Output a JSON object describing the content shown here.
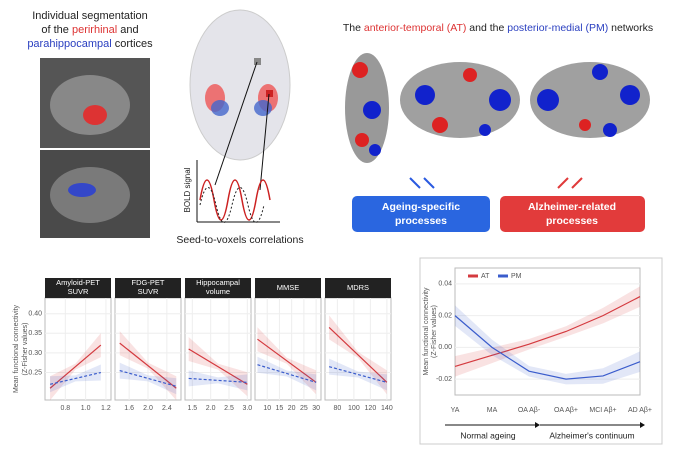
{
  "segmentation": {
    "lines": [
      "Individual segmentation",
      "of the ",
      "perirhinal",
      " and",
      "parahippocampal",
      " cortices"
    ]
  },
  "seed": {
    "caption": "Seed-to-voxels correlations",
    "signal": "BOLD signal"
  },
  "networks": {
    "title": [
      "The ",
      "anterior-temporal (AT)",
      " and the ",
      "posterior-medial (PM)",
      " networks"
    ]
  },
  "boxes": {
    "ageing": [
      "Ageing-specific",
      "processes"
    ],
    "alzheimer": [
      "Alzheimer-related",
      "processes"
    ]
  },
  "chart_data": [
    {
      "type": "line",
      "ylabel": [
        "Mean functional connectivity",
        "(Z-Fisher values)"
      ],
      "ylim": [
        0.18,
        0.44
      ],
      "yticks": [
        0.25,
        {
          "value": 0.3,
          "label": "0.30"
        },
        0.35,
        {
          "value": 0.4,
          "label": "0.40"
        }
      ],
      "facets": [
        {
          "title": [
            "Amyloid-PET",
            "SUVR"
          ],
          "xlim": [
            0.6,
            1.25
          ],
          "xticks": [
            0.8,
            {
              "value": 1,
              "label": "1.0"
            },
            1.2
          ],
          "series": [
            {
              "color": "#d43a3f",
              "x": [
                0.65,
                1.15
              ],
              "y": [
                0.21,
                0.32
              ]
            },
            {
              "color": "#3a5ccc",
              "x": [
                0.65,
                1.15
              ],
              "y": [
                0.22,
                0.25
              ]
            }
          ]
        },
        {
          "title": [
            "FDG-PET",
            "SUVR"
          ],
          "xlim": [
            1.3,
            2.7
          ],
          "xticks": [
            1.6,
            {
              "value": 2,
              "label": "2.0"
            },
            2.4
          ],
          "series": [
            {
              "color": "#d43a3f",
              "x": [
                1.4,
                2.6
              ],
              "y": [
                0.325,
                0.21
              ]
            },
            {
              "color": "#3a5ccc",
              "x": [
                1.4,
                2.6
              ],
              "y": [
                0.255,
                0.215
              ]
            }
          ]
        },
        {
          "title": [
            "Hippocampal",
            "volume"
          ],
          "xlim": [
            1.3,
            3.1
          ],
          "xticks": [
            1.5,
            {
              "value": 2,
              "label": "2.0"
            },
            2.5,
            {
              "value": 3,
              "label": "3.0"
            }
          ],
          "series": [
            {
              "color": "#d43a3f",
              "x": [
                1.4,
                3.0
              ],
              "y": [
                0.31,
                0.22
              ]
            },
            {
              "color": "#3a5ccc",
              "x": [
                1.4,
                3.0
              ],
              "y": [
                0.235,
                0.225
              ]
            }
          ]
        },
        {
          "title": [
            "MMSE"
          ],
          "xlim": [
            5,
            32
          ],
          "xticks": [
            10,
            15,
            20,
            25,
            30
          ],
          "series": [
            {
              "color": "#d43a3f",
              "x": [
                6,
                30
              ],
              "y": [
                0.335,
                0.225
              ]
            },
            {
              "color": "#3a5ccc",
              "x": [
                6,
                30
              ],
              "y": [
                0.27,
                0.225
              ]
            }
          ]
        },
        {
          "title": [
            "MDRS"
          ],
          "xlim": [
            65,
            145
          ],
          "xticks": [
            80,
            100,
            120,
            140
          ],
          "series": [
            {
              "color": "#d43a3f",
              "x": [
                70,
                140
              ],
              "y": [
                0.365,
                0.225
              ]
            },
            {
              "color": "#3a5ccc",
              "x": [
                70,
                140
              ],
              "y": [
                0.265,
                0.225
              ]
            }
          ]
        }
      ]
    },
    {
      "type": "line",
      "ylabel": [
        "Mean functional connectivity",
        "(Z-Fisher values)"
      ],
      "ylim": [
        -0.03,
        0.05
      ],
      "yticks": [
        -0.02,
        {
          "value": 0,
          "label": "0.00"
        },
        0.02,
        0.04
      ],
      "categories": [
        "YA",
        "MA",
        "OA Aβ-",
        "OA Aβ+",
        "MCI Aβ+",
        "AD Aβ+"
      ],
      "series": [
        {
          "name": "AT",
          "color": "#d43a3f",
          "values": [
            -0.012,
            -0.005,
            0.002,
            0.01,
            0.02,
            0.032
          ]
        },
        {
          "name": "PM",
          "color": "#3a5ccc",
          "values": [
            0.02,
            0.0,
            -0.015,
            -0.02,
            -0.018,
            -0.009
          ]
        }
      ],
      "groups": [
        "Normal ageing",
        "Alzheimer's continuum"
      ]
    }
  ]
}
